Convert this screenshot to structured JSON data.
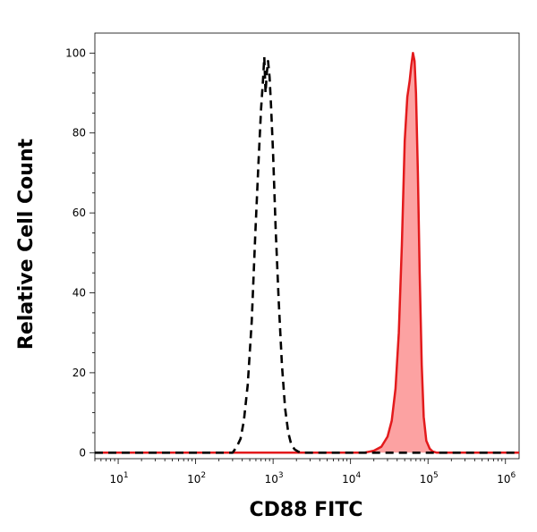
{
  "chart_data": {
    "type": "area",
    "title": "",
    "xlabel": "CD88 FITC",
    "ylabel": "Relative Cell Count",
    "x_scale": "log",
    "xlim": [
      5,
      1500000
    ],
    "ylim": [
      -1.5,
      105
    ],
    "x_ticks": [
      {
        "value": 10,
        "base": "10",
        "exp": "1"
      },
      {
        "value": 100,
        "base": "10",
        "exp": "2"
      },
      {
        "value": 1000,
        "base": "10",
        "exp": "3"
      },
      {
        "value": 10000,
        "base": "10",
        "exp": "4"
      },
      {
        "value": 100000,
        "base": "10",
        "exp": "5"
      },
      {
        "value": 1000000,
        "base": "10",
        "exp": "6"
      }
    ],
    "y_ticks": [
      0,
      20,
      40,
      60,
      80,
      100
    ],
    "grid": false,
    "legend": "none",
    "series": [
      {
        "style": "dashed",
        "color": "#000000",
        "fill": false,
        "x": [
          5,
          300,
          340,
          380,
          420,
          470,
          530,
          590,
          650,
          700,
          740,
          770,
          800,
          830,
          860,
          900,
          940,
          1000,
          1080,
          1180,
          1300,
          1430,
          1570,
          1720,
          1900,
          2100,
          2300,
          1500000
        ],
        "y": [
          0,
          0,
          1.5,
          3.5,
          8,
          17,
          33,
          55,
          73,
          86,
          93,
          99,
          90,
          95,
          98,
          94,
          87,
          75,
          56,
          38,
          22,
          11,
          5,
          2,
          0.8,
          0.3,
          0,
          0
        ]
      },
      {
        "style": "solid",
        "color": "#e31a1c",
        "fill": true,
        "fill_color": "#fca2a2",
        "x": [
          5,
          15000,
          20000,
          25000,
          30000,
          34000,
          38000,
          42000,
          46000,
          50000,
          54000,
          58000,
          61000,
          64000,
          67000,
          70000,
          74000,
          78000,
          83000,
          88000,
          95000,
          105000,
          115000,
          130000,
          1500000
        ],
        "y": [
          0,
          0,
          0.5,
          1.5,
          4,
          8,
          16,
          30,
          52,
          78,
          89,
          93,
          97,
          100,
          98,
          90,
          70,
          45,
          22,
          9,
          3,
          1,
          0.3,
          0,
          0
        ]
      }
    ]
  }
}
